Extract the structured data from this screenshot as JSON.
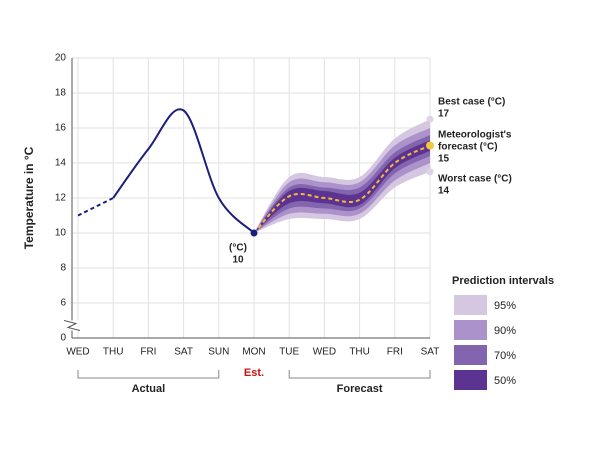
{
  "chart_data": {
    "type": "line",
    "y_label": "Temperature in °C",
    "categories": [
      "WED",
      "THU",
      "FRI",
      "SAT",
      "SUN",
      "MON",
      "TUE",
      "WED",
      "THU",
      "FRI",
      "SAT"
    ],
    "ylim": [
      0,
      20
    ],
    "yticks": [
      0,
      6,
      8,
      10,
      12,
      14,
      16,
      18,
      20
    ],
    "axis_break": true,
    "grid": true,
    "series": [
      {
        "color": "#1b1f7a",
        "dash": true,
        "values": [
          11,
          12,
          null,
          null,
          null,
          null,
          null,
          null,
          null,
          null,
          null
        ]
      },
      {
        "color": "#1b1f7a",
        "dash": false,
        "values": [
          null,
          12,
          14.8,
          17,
          12,
          10,
          null,
          null,
          null,
          null,
          null
        ]
      },
      {
        "color": "#f5b83d",
        "dash": true,
        "values": [
          null,
          null,
          null,
          null,
          null,
          10,
          12.1,
          12,
          11.9,
          14,
          15
        ]
      }
    ],
    "intervals_title": "Prediction intervals",
    "intervals": [
      {
        "name": "95%",
        "color": "#d5c6e2",
        "lower": [
          null,
          null,
          null,
          null,
          null,
          10,
          10.8,
          10.8,
          10.8,
          12.6,
          13.5
        ],
        "upper": [
          null,
          null,
          null,
          null,
          null,
          10,
          13.2,
          13.2,
          13.2,
          15.4,
          16.5
        ]
      },
      {
        "name": "90%",
        "color": "#ab92ca",
        "lower": [
          null,
          null,
          null,
          null,
          null,
          10,
          11.1,
          11.1,
          11.1,
          13.0,
          14.0
        ],
        "upper": [
          null,
          null,
          null,
          null,
          null,
          10,
          12.9,
          12.9,
          12.9,
          15.0,
          16.0
        ]
      },
      {
        "name": "70%",
        "color": "#8364ae",
        "lower": [
          null,
          null,
          null,
          null,
          null,
          10,
          11.4,
          11.4,
          11.4,
          13.4,
          14.4
        ],
        "upper": [
          null,
          null,
          null,
          null,
          null,
          10,
          12.6,
          12.6,
          12.6,
          14.6,
          15.6
        ]
      },
      {
        "name": "50%",
        "color": "#5c3390",
        "lower": [
          null,
          null,
          null,
          null,
          null,
          10,
          11.7,
          11.7,
          11.6,
          13.7,
          14.7
        ],
        "upper": [
          null,
          null,
          null,
          null,
          null,
          10,
          12.4,
          12.4,
          12.3,
          14.3,
          15.3
        ]
      }
    ],
    "annotations": {
      "mon_unit": "(°C)",
      "best_label": "Best case (°C)",
      "best_value": 17,
      "forecast_label": [
        "Meteorologist's",
        "forecast (°C)"
      ],
      "worst_label": "Worst case (°C)",
      "worst_value": 14
    },
    "groups": {
      "actual": "Actual",
      "estimate": "Est.",
      "forecast": "Forecast"
    }
  }
}
